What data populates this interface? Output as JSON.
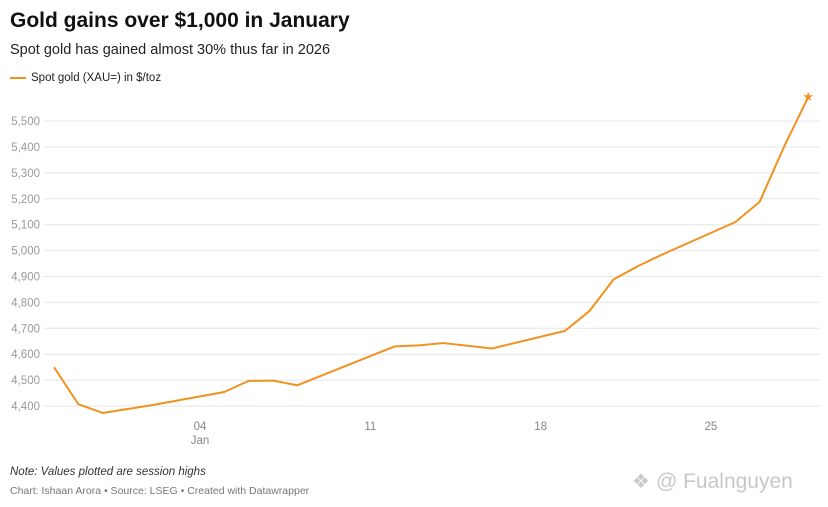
{
  "chart_data": {
    "type": "line",
    "title": "Gold gains over $1,000 in January",
    "subtitle": "Spot gold has gained almost 30% thus far in 2026",
    "xlabel": "",
    "ylabel": "",
    "series": [
      {
        "name": "Spot gold (XAU=) in $/toz",
        "color": "#f0921e",
        "end_marker": "star",
        "points": [
          {
            "x": "2025-12-29",
            "y": 4550
          },
          {
            "x": "2025-12-30",
            "y": 4407
          },
          {
            "x": "2025-12-31",
            "y": 4373
          },
          {
            "x": "2026-01-02",
            "y": 4403
          },
          {
            "x": "2026-01-05",
            "y": 4454
          },
          {
            "x": "2026-01-06",
            "y": 4497
          },
          {
            "x": "2026-01-07",
            "y": 4498
          },
          {
            "x": "2026-01-08",
            "y": 4480
          },
          {
            "x": "2026-01-12",
            "y": 4630
          },
          {
            "x": "2026-01-13",
            "y": 4634
          },
          {
            "x": "2026-01-14",
            "y": 4643
          },
          {
            "x": "2026-01-16",
            "y": 4622
          },
          {
            "x": "2026-01-19",
            "y": 4690
          },
          {
            "x": "2026-01-20",
            "y": 4766
          },
          {
            "x": "2026-01-21",
            "y": 4889
          },
          {
            "x": "2026-01-22",
            "y": 4940
          },
          {
            "x": "2026-01-23",
            "y": 4985
          },
          {
            "x": "2026-01-26",
            "y": 5110
          },
          {
            "x": "2026-01-27",
            "y": 5188
          },
          {
            "x": "2026-01-28",
            "y": 5400
          },
          {
            "x": "2026-01-29",
            "y": 5593
          }
        ]
      }
    ],
    "yticks": [
      4400,
      4500,
      4600,
      4700,
      4800,
      4900,
      5000,
      5100,
      5200,
      5300,
      5400,
      5500
    ],
    "ytick_labels": [
      "4,400",
      "4,500",
      "4,600",
      "4,700",
      "4,800",
      "4,900",
      "5,000",
      "5,100",
      "5,200",
      "5,300",
      "5,400",
      "5,500"
    ],
    "xticks": [
      {
        "date": "2026-01-04",
        "label": "04",
        "sublabel": "Jan"
      },
      {
        "date": "2026-01-11",
        "label": "11",
        "sublabel": ""
      },
      {
        "date": "2026-01-18",
        "label": "18",
        "sublabel": ""
      },
      {
        "date": "2026-01-25",
        "label": "25",
        "sublabel": ""
      }
    ],
    "grid": true,
    "legend_position": "top-left"
  },
  "footer": {
    "note": "Note: Values plotted are session highs",
    "credit": "Chart: Ishaan Arora • Source: LSEG • Created with Datawrapper"
  },
  "watermark": {
    "text": "@ Fualnguyen"
  }
}
